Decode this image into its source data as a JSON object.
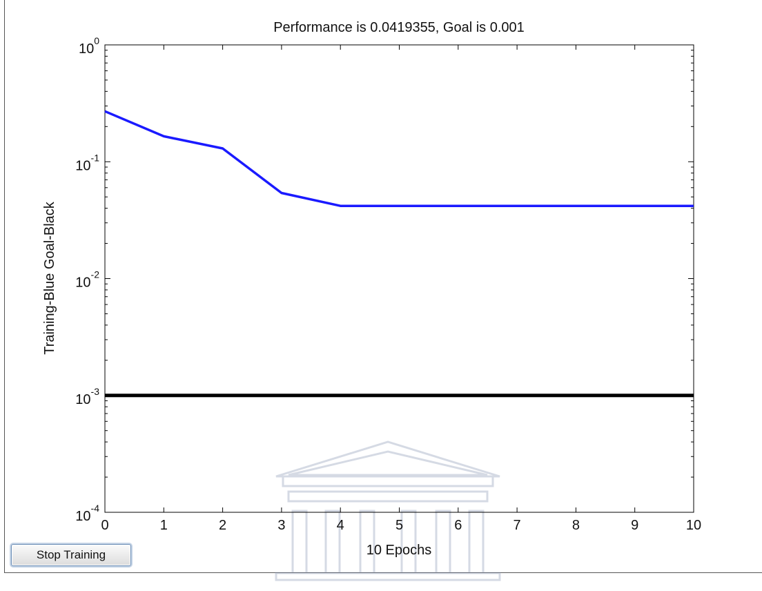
{
  "chart_data": {
    "type": "line",
    "title": "Performance is 0.0419355, Goal is 0.001",
    "xlabel": "10 Epochs",
    "ylabel": "Training-Blue  Goal-Black",
    "xlim": [
      0,
      10
    ],
    "ylim": [
      0.0001,
      1
    ],
    "yscale": "log",
    "x_ticks": [
      "0",
      "1",
      "2",
      "3",
      "4",
      "5",
      "6",
      "7",
      "8",
      "9",
      "10"
    ],
    "y_ticks": [
      {
        "value": 1,
        "base": "10",
        "exp": "0"
      },
      {
        "value": 0.1,
        "base": "10",
        "exp": "-1"
      },
      {
        "value": 0.01,
        "base": "10",
        "exp": "-2"
      },
      {
        "value": 0.001,
        "base": "10",
        "exp": "-3"
      },
      {
        "value": 0.0001,
        "base": "10",
        "exp": "-4"
      }
    ],
    "grid": false,
    "series": [
      {
        "color": "#1a1aff",
        "x": [
          0,
          1,
          2,
          3,
          4,
          5,
          6,
          7,
          8,
          9,
          10
        ],
        "values": [
          0.27,
          0.165,
          0.13,
          0.054,
          0.0419,
          0.0419,
          0.0419,
          0.0419,
          0.0419,
          0.0419,
          0.0419
        ]
      },
      {
        "color": "#000000",
        "x": [
          0,
          10
        ],
        "values": [
          0.001,
          0.001
        ]
      }
    ]
  },
  "controls": {
    "stop_button_label": "Stop Training"
  }
}
